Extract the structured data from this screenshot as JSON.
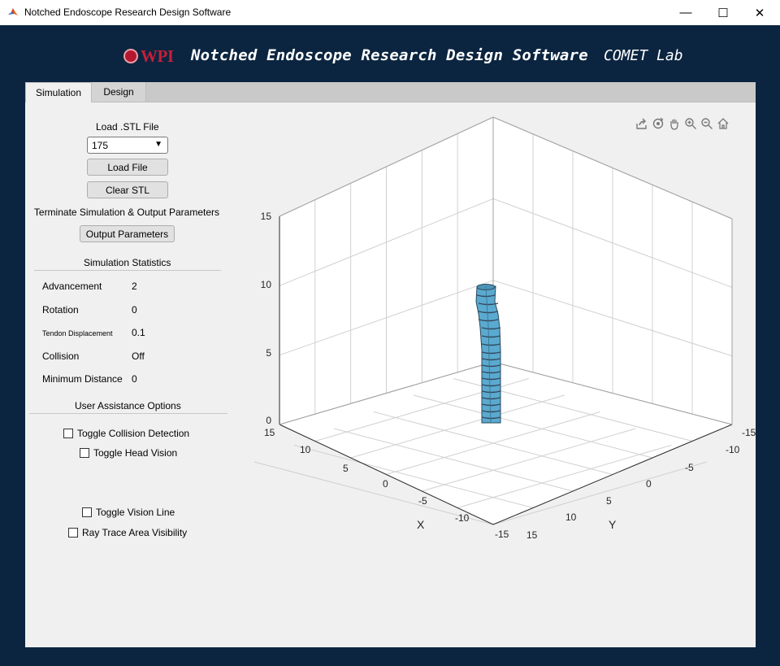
{
  "window": {
    "title": "Notched Endoscope Research Design Software",
    "controls": {
      "minimize": "—",
      "maximize": "☐",
      "close": "✕"
    }
  },
  "header": {
    "logo_text": "WPI",
    "title": "Notched Endoscope Research Design Software",
    "lab": "COMET Lab"
  },
  "tabs": [
    {
      "label": "Simulation",
      "active": true
    },
    {
      "label": "Design",
      "active": false
    }
  ],
  "sidebar": {
    "load_label": "Load .STL File",
    "stl_dropdown": {
      "selected": "175"
    },
    "load_button": "Load File",
    "clear_button": "Clear STL",
    "terminate_label": "Terminate Simulation & Output Parameters",
    "output_button": "Output Parameters",
    "stats_header": "Simulation Statistics",
    "stats": [
      {
        "label": "Advancement",
        "value": "2"
      },
      {
        "label": "Rotation",
        "value": "0"
      },
      {
        "label": "Tendon Displacement",
        "value": "0.1"
      },
      {
        "label": "Collision",
        "value": "Off"
      },
      {
        "label": "Minimum Distance",
        "value": "0"
      }
    ],
    "assist_header": "User Assistance Options",
    "checkboxes": [
      {
        "label": "Toggle Collision Detection",
        "checked": false
      },
      {
        "label": "Toggle Head Vision",
        "checked": false
      },
      {
        "label": "Toggle Vision Line",
        "checked": false
      },
      {
        "label": "Ray Trace Area Visibility",
        "checked": false
      }
    ]
  },
  "plot": {
    "toolbar_icons": [
      "export-icon",
      "rotate-3d-icon",
      "pan-icon",
      "zoom-in-icon",
      "zoom-out-icon",
      "home-icon"
    ],
    "z_ticks": [
      "0",
      "5",
      "10",
      "15"
    ],
    "x_ticks": [
      "15",
      "10",
      "5",
      "0",
      "-5",
      "-10",
      "-15"
    ],
    "y_ticks": [
      "15",
      "10",
      "5",
      "0",
      "-5",
      "-10",
      "-15"
    ],
    "x_label": "X",
    "y_label": "Y",
    "limits": {
      "x": [
        -15,
        15
      ],
      "y": [
        -15,
        15
      ],
      "z": [
        0,
        15
      ]
    },
    "grid": true,
    "endoscope_color": "#5aaad0"
  }
}
